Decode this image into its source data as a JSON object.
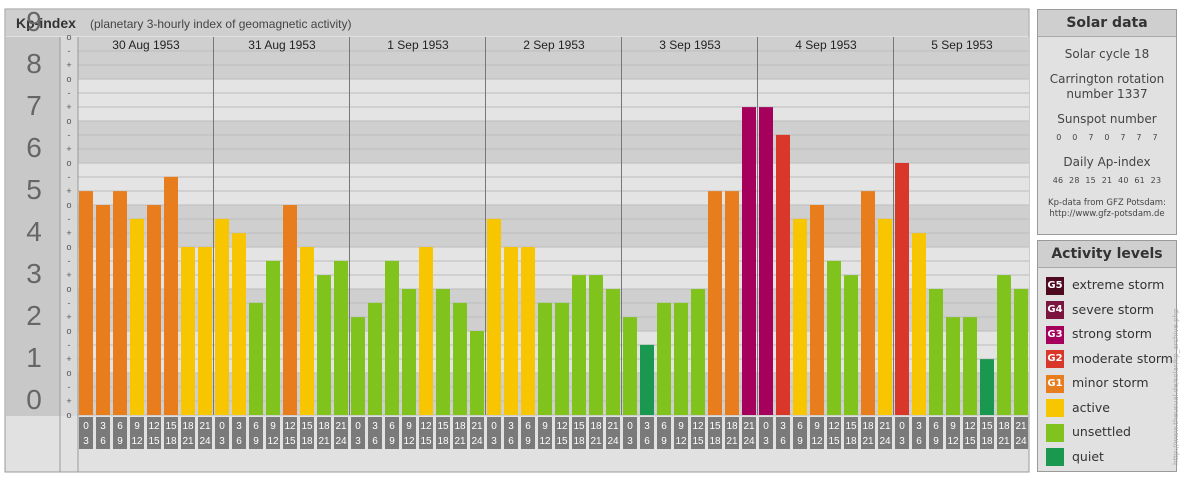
{
  "header": {
    "title": "Kp-index",
    "subtitle": "(planetary 3-hourly index of geomagnetic activity)"
  },
  "chart_data": {
    "type": "bar",
    "ylim": [
      0,
      9
    ],
    "y_ticks": [
      "0",
      "1",
      "2",
      "3",
      "4",
      "5",
      "6",
      "7",
      "8",
      "9"
    ],
    "minor_tick_labels": [
      "o",
      "+",
      "-",
      "o",
      "+",
      "-",
      "o",
      "+",
      "-",
      "o",
      "+",
      "-",
      "o",
      "+",
      "-",
      "o",
      "+",
      "-",
      "o",
      "+",
      "-",
      "o",
      "+",
      "-",
      "o",
      "+",
      "-",
      "o"
    ],
    "days": [
      "30 Aug 1953",
      "31 Aug 1953",
      "1 Sep 1953",
      "2 Sep 1953",
      "3 Sep 1953",
      "4 Sep 1953",
      "5 Sep 1953"
    ],
    "intervals": [
      [
        "0",
        "3"
      ],
      [
        "3",
        "6"
      ],
      [
        "6",
        "9"
      ],
      [
        "9",
        "12"
      ],
      [
        "12",
        "15"
      ],
      [
        "15",
        "18"
      ],
      [
        "18",
        "21"
      ],
      [
        "21",
        "24"
      ]
    ],
    "values": [
      5.33,
      5.0,
      5.33,
      4.67,
      5.0,
      5.67,
      4.0,
      4.0,
      4.67,
      4.33,
      2.67,
      3.67,
      5.0,
      4.0,
      3.33,
      3.67,
      2.33,
      2.67,
      3.67,
      3.0,
      4.0,
      3.0,
      2.67,
      2.0,
      4.67,
      4.0,
      4.0,
      2.67,
      2.67,
      3.33,
      3.33,
      3.0,
      2.33,
      1.67,
      2.67,
      2.67,
      3.0,
      5.33,
      5.33,
      7.33,
      7.33,
      6.67,
      4.67,
      5.0,
      3.67,
      3.33,
      5.33,
      4.67,
      6.0,
      4.33,
      3.0,
      2.33,
      2.33,
      1.33,
      3.33,
      3.0
    ],
    "grid": true,
    "colors": {
      "quiet": "#1a9850",
      "unsettled": "#80c31c",
      "active": "#f7c600",
      "G1": "#e87d1e",
      "G2": "#d9372a",
      "G3": "#a5005b",
      "G4": "#7c1440",
      "G5": "#4e0a1e"
    }
  },
  "solar_data": {
    "title": "Solar data",
    "cycle": "Solar cycle 18",
    "carrington_label": "Carrington rotation",
    "carrington_number": "number 1337",
    "sunspot_label": "Sunspot number",
    "sunspot_values": "0 0 7 0 7 7 7",
    "ap_label": "Daily Ap-index",
    "ap_values": "46 28 15 21 40 61 23",
    "source_line1": "Kp-data from GFZ Potsdam:",
    "source_line2": "http://www.gfz-potsdam.de"
  },
  "activity_levels": {
    "title": "Activity levels",
    "items": [
      {
        "badge": "G5",
        "label": "extreme storm",
        "color": "#4e0a1e"
      },
      {
        "badge": "G4",
        "label": "severe storm",
        "color": "#7c1440"
      },
      {
        "badge": "G3",
        "label": "strong storm",
        "color": "#a5005b"
      },
      {
        "badge": "G2",
        "label": "moderate storm",
        "color": "#d9372a"
      },
      {
        "badge": "G1",
        "label": "minor storm",
        "color": "#e87d1e"
      },
      {
        "badge": "",
        "label": "active",
        "color": "#f7c600"
      },
      {
        "badge": "",
        "label": "unsettled",
        "color": "#80c31c"
      },
      {
        "badge": "",
        "label": "quiet",
        "color": "#1a9850"
      }
    ]
  },
  "credit": "http://www.theusual.de/solar/kp_archive.php"
}
